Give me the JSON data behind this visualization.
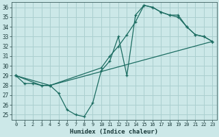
{
  "xlabel": "Humidex (Indice chaleur)",
  "bg_color": "#cce8e8",
  "grid_color": "#aacfcf",
  "line_color": "#1a6b60",
  "xlim": [
    -0.5,
    23.5
  ],
  "ylim": [
    24.5,
    36.5
  ],
  "xticks": [
    0,
    1,
    2,
    3,
    4,
    5,
    6,
    7,
    8,
    9,
    10,
    11,
    12,
    13,
    14,
    15,
    16,
    17,
    18,
    19,
    20,
    21,
    22,
    23
  ],
  "yticks": [
    25,
    26,
    27,
    28,
    29,
    30,
    31,
    32,
    33,
    34,
    35,
    36
  ],
  "line1_x": [
    0,
    1,
    2,
    3,
    4,
    5,
    6,
    7,
    8,
    9,
    10,
    11,
    12,
    13,
    14,
    15,
    16,
    17,
    18,
    19,
    20,
    21,
    22,
    23
  ],
  "line1_y": [
    29.0,
    28.2,
    28.2,
    28.0,
    28.0,
    27.2,
    25.5,
    25.0,
    24.8,
    26.2,
    29.5,
    30.5,
    33.0,
    29.0,
    35.2,
    36.2,
    36.0,
    35.5,
    35.2,
    35.2,
    34.0,
    33.2,
    33.0,
    32.5
  ],
  "line2_x": [
    0,
    3,
    4,
    10,
    11,
    12,
    13,
    14,
    15,
    16,
    17,
    18,
    19,
    20,
    21,
    22,
    23
  ],
  "line2_y": [
    29.0,
    28.0,
    28.0,
    29.8,
    31.0,
    32.0,
    33.2,
    34.5,
    36.2,
    36.0,
    35.5,
    35.2,
    35.0,
    34.0,
    33.2,
    33.0,
    32.5
  ],
  "line3_x": [
    0,
    4,
    23
  ],
  "line3_y": [
    29.0,
    28.0,
    32.5
  ]
}
